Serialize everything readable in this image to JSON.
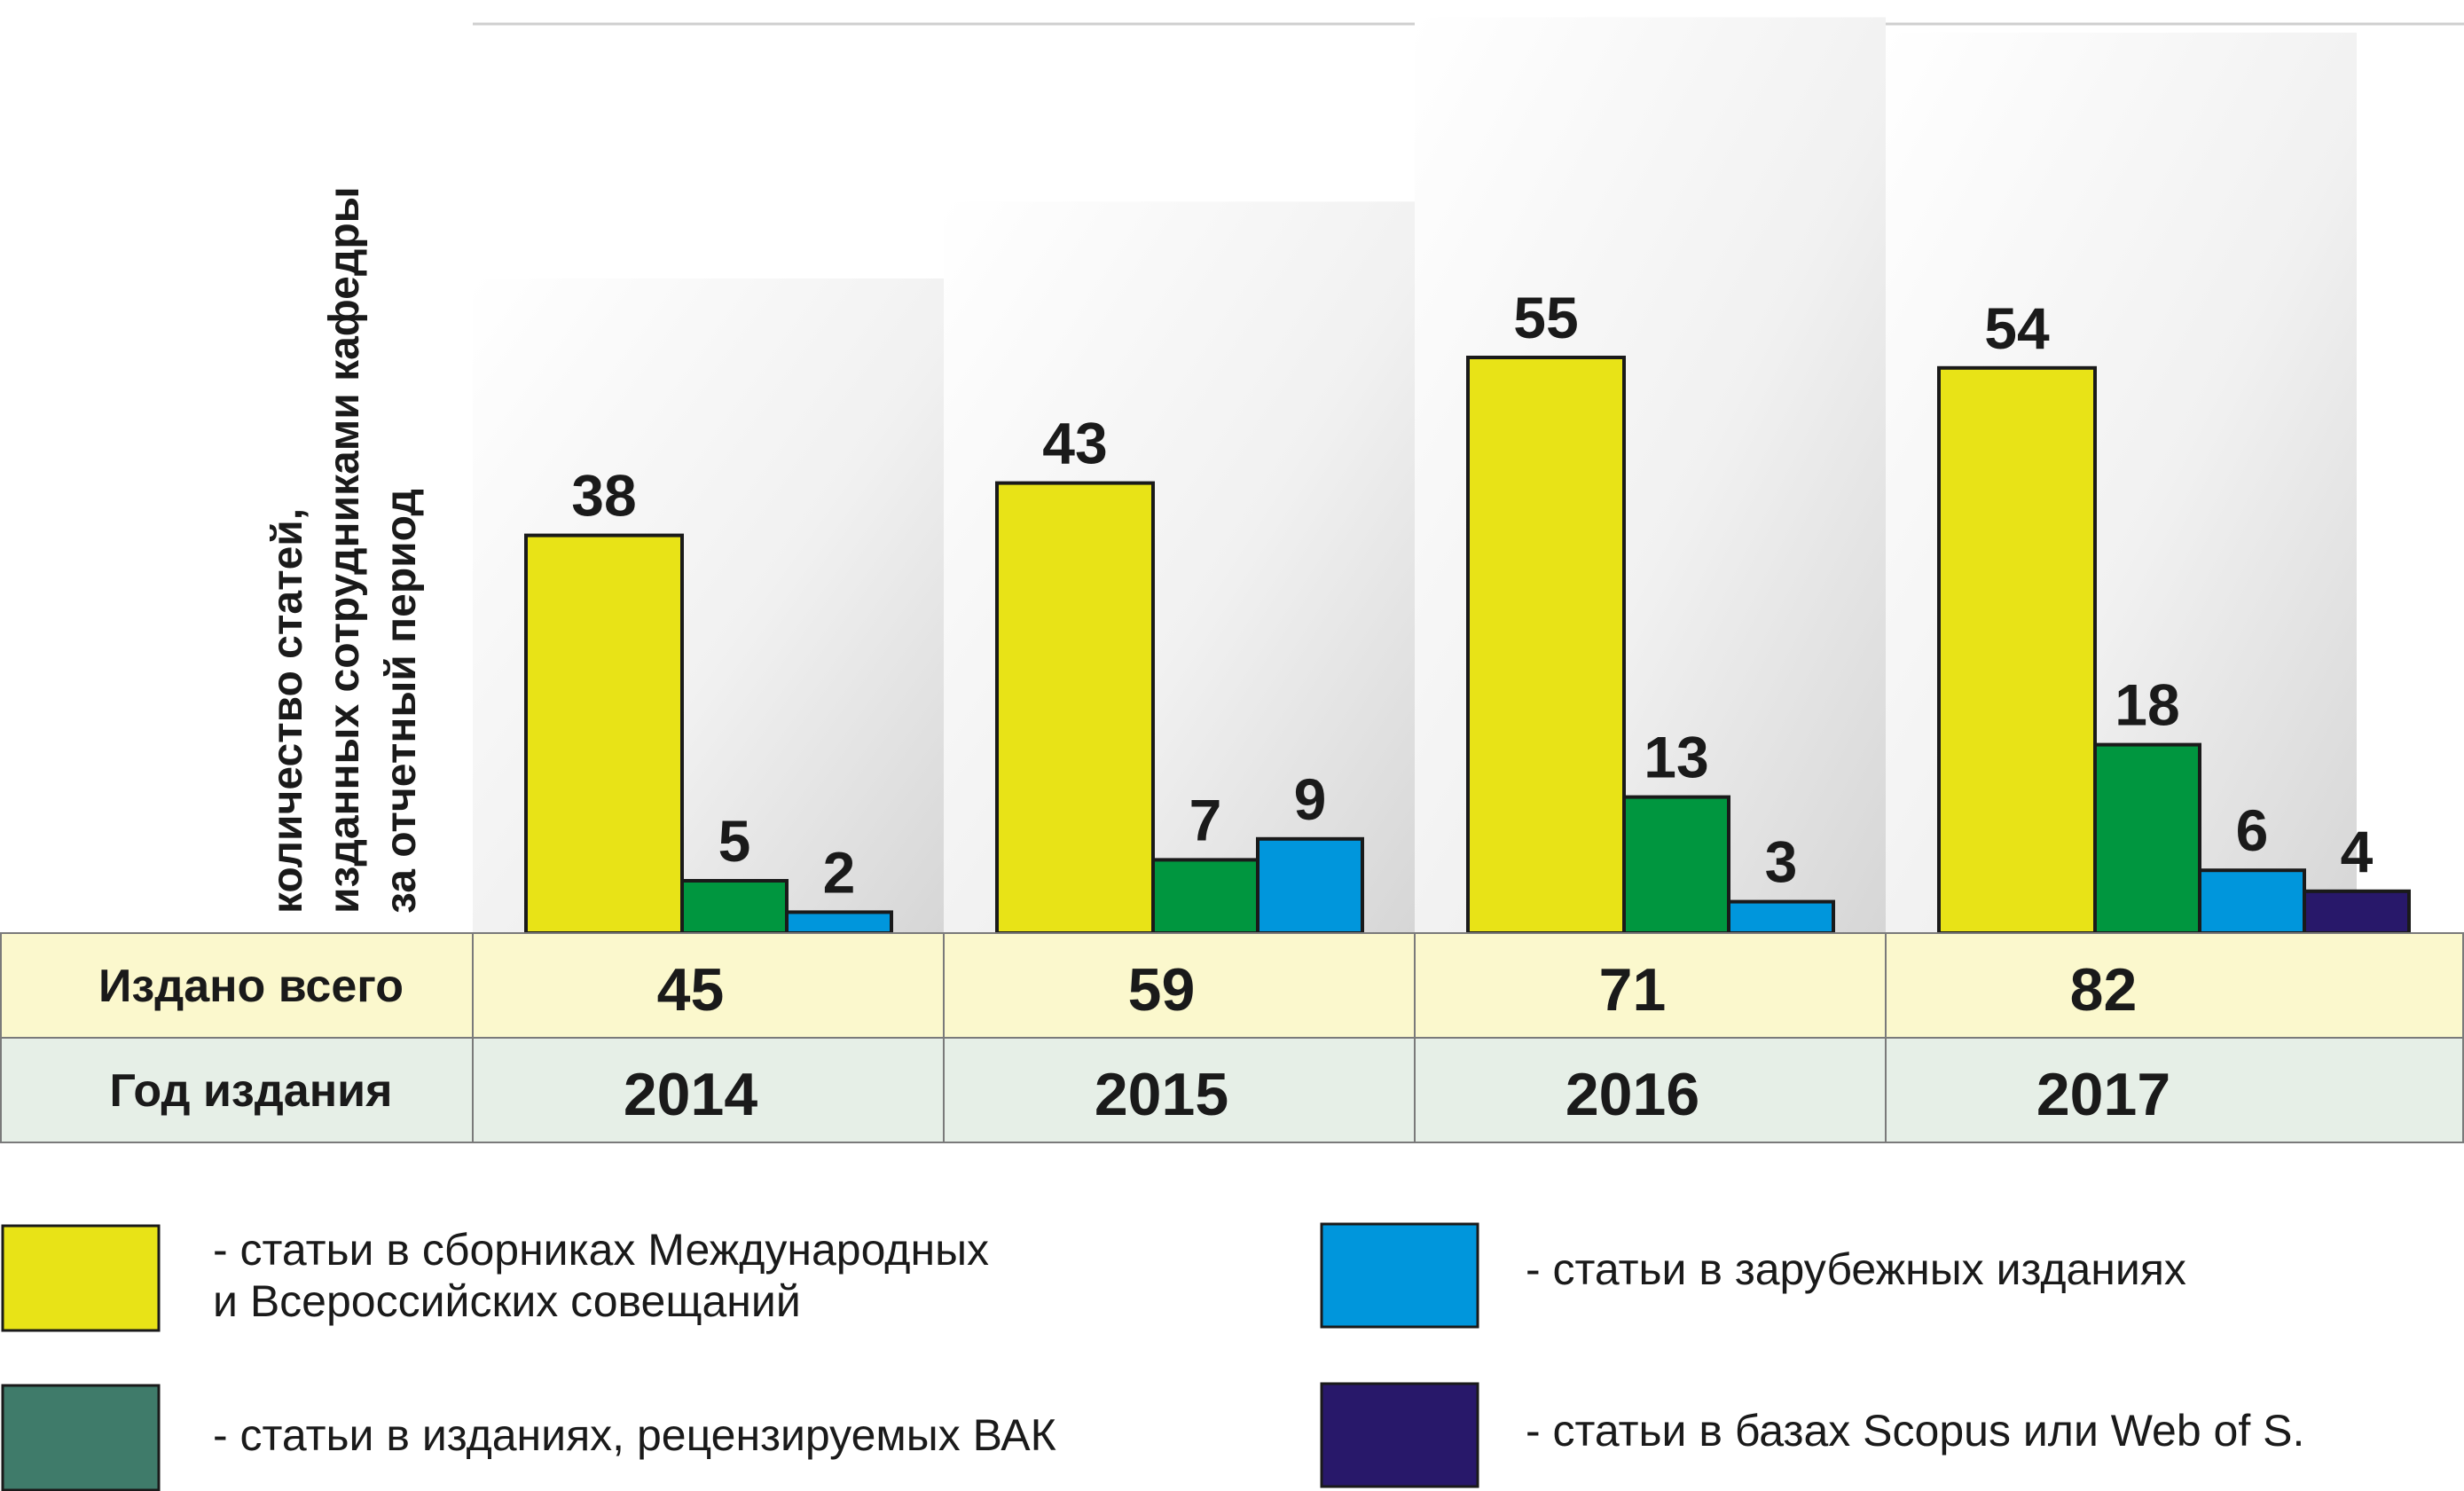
{
  "chart_data": {
    "type": "bar",
    "ylabel_lines": [
      "количество статей,",
      "изданных сотрудниками кафедры",
      "за отчетный период"
    ],
    "categories": [
      "2014",
      "2015",
      "2016",
      "2017"
    ],
    "series": [
      {
        "key": "intl",
        "color": "#e8e317",
        "values": [
          38,
          43,
          55,
          54
        ]
      },
      {
        "key": "vak",
        "color": "#00963f",
        "values": [
          5,
          7,
          13,
          18
        ]
      },
      {
        "key": "foreign",
        "color": "#0096dc",
        "values": [
          2,
          9,
          3,
          6
        ]
      },
      {
        "key": "scopus",
        "color": "#28186a",
        "values": [
          null,
          null,
          null,
          4
        ]
      }
    ],
    "table": {
      "rows": [
        {
          "label": "Издано всего",
          "values": [
            "45",
            "59",
            "71",
            "82"
          ],
          "fill": "#fbf8cd"
        },
        {
          "label": "Год издания",
          "values": [
            "2014",
            "2015",
            "2016",
            "2017"
          ],
          "fill": "#e6efe7"
        }
      ]
    },
    "legend": [
      {
        "color": "#e8e317",
        "text_lines": [
          "-  статьи в сборниках Международных",
          "   и Всероссийских совещаний"
        ]
      },
      {
        "color": "#0096dc",
        "text_lines": [
          "-  статьи в зарубежных изданиях"
        ]
      },
      {
        "color": "#3f7b6a",
        "text_lines": [
          "-  статьи в изданиях, рецензируемых ВАК"
        ]
      },
      {
        "color": "#28186a",
        "text_lines": [
          "-  статьи в базах Scopus или Web of S."
        ]
      }
    ],
    "grid": false
  }
}
